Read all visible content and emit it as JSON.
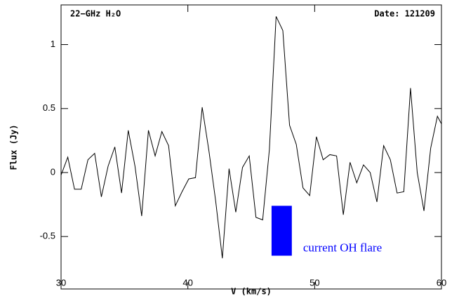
{
  "chart_data": {
    "type": "line",
    "title": "22−GHz H₂O",
    "subtitle": "Date: 121209",
    "x_label": "V (km/s)",
    "y_label": "Flux (Jy)",
    "x": [
      30,
      30.53,
      31.06,
      31.59,
      32.12,
      32.65,
      33.18,
      33.71,
      34.24,
      34.77,
      35.3,
      35.83,
      36.36,
      36.89,
      37.42,
      37.95,
      38.48,
      39.01,
      39.54,
      40.07,
      40.6,
      41.13,
      41.66,
      42.19,
      42.72,
      43.25,
      43.78,
      44.31,
      44.84,
      45.37,
      45.9,
      46.43,
      46.96,
      47.49,
      48.02,
      48.55,
      49.08,
      49.61,
      50.14,
      50.67,
      51.2,
      51.73,
      52.26,
      52.79,
      53.32,
      53.85,
      54.38,
      54.91,
      55.44,
      55.97,
      56.5,
      57.03,
      57.56,
      58.09,
      58.62,
      59.15,
      59.68,
      60
    ],
    "series": [
      {
        "color": "#000000",
        "values": [
          -0.02,
          0.12,
          -0.13,
          -0.13,
          0.1,
          0.15,
          -0.19,
          0.05,
          0.2,
          -0.16,
          0.33,
          0.05,
          -0.34,
          0.33,
          0.13,
          0.32,
          0.21,
          -0.26,
          -0.15,
          -0.05,
          -0.04,
          0.51,
          0.17,
          -0.22,
          -0.67,
          0.03,
          -0.31,
          0.04,
          0.13,
          -0.35,
          -0.37,
          0.18,
          1.22,
          1.11,
          0.37,
          0.22,
          -0.12,
          -0.18,
          0.28,
          0.1,
          0.14,
          0.13,
          -0.33,
          0.08,
          -0.08,
          0.06,
          0,
          -0.23,
          0.21,
          0.1,
          -0.16,
          -0.15,
          0.66,
          0,
          -0.3,
          0.19,
          0.44,
          0.38
        ]
      }
    ],
    "xlim": [
      30,
      60
    ],
    "ylim": [
      -0.91,
      1.31
    ],
    "xticks": [
      30,
      40,
      50,
      60
    ],
    "yticks": [
      -0.5,
      0,
      0.5,
      1
    ],
    "annotations": [
      {
        "text": "current OH flare",
        "color": "#0000ff",
        "xrange": [
          46.6,
          48.2
        ],
        "yrange": [
          -0.65,
          -0.26
        ]
      }
    ]
  }
}
